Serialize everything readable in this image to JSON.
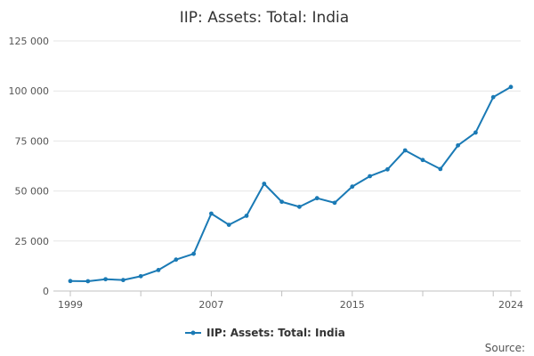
{
  "chart_data": {
    "type": "line",
    "title": "IIP: Assets: Total: India",
    "xlabel": "",
    "ylabel": "",
    "xlim": [
      1999,
      2024
    ],
    "ylim": [
      0,
      125000
    ],
    "x_ticks": [
      1999,
      2007,
      2015,
      2024
    ],
    "x_tick_labels": [
      "1999",
      "2007",
      "2015",
      "2024"
    ],
    "y_ticks": [
      0,
      25000,
      50000,
      75000,
      100000,
      125000
    ],
    "y_tick_labels": [
      "0",
      "25 000",
      "50 000",
      "75 000",
      "100 000",
      "125 000"
    ],
    "grid": true,
    "legend_position": "bottom",
    "source_label": "Source:",
    "series": [
      {
        "name": "IIP: Assets: Total: India",
        "color": "#1a7ab5",
        "x": [
          1999,
          2000,
          2001,
          2002,
          2003,
          2004,
          2005,
          2006,
          2007,
          2008,
          2009,
          2010,
          2011,
          2012,
          2013,
          2014,
          2015,
          2016,
          2017,
          2018,
          2019,
          2020,
          2021,
          2022,
          2023,
          2024
        ],
        "values": [
          5000,
          4900,
          5900,
          5500,
          7400,
          10500,
          15700,
          18600,
          38700,
          33100,
          37600,
          53600,
          44600,
          42100,
          46400,
          44100,
          52200,
          57400,
          60800,
          70300,
          65500,
          61000,
          72800,
          79200,
          96900,
          102000
        ]
      }
    ]
  }
}
